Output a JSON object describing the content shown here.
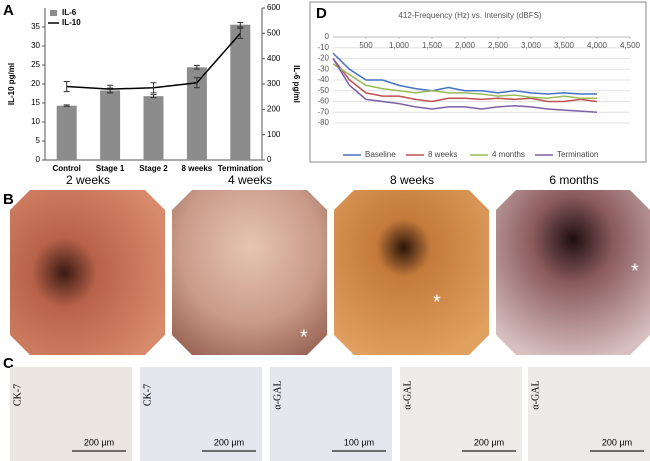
{
  "chart_data": [
    {
      "type": "bar",
      "y_label": "IL-10 pg/ml",
      "y2_label": "IL-6 pg/ml",
      "categories": [
        "Control",
        "Stage 1",
        "Stage 2",
        "8 weeks",
        "Termination"
      ],
      "series": [
        {
          "name": "IL-6",
          "type": "bar",
          "axis": "y",
          "color": "#8c8c8c",
          "values": [
            14.3,
            18.3,
            16.8,
            24.4,
            35.6
          ],
          "errors": [
            0.2,
            0.6,
            0.4,
            0.5,
            0.6
          ]
        },
        {
          "name": "IL-10",
          "type": "line",
          "axis": "y2",
          "color": "#000000",
          "values": [
            290,
            280,
            285,
            305,
            500
          ],
          "errors": [
            20,
            15,
            20,
            20,
            20
          ]
        }
      ],
      "ylim": [
        0,
        40
      ],
      "yticks": [
        0,
        5,
        10,
        15,
        20,
        25,
        30,
        35
      ],
      "y2lim": [
        0,
        600
      ],
      "y2ticks": [
        0,
        100,
        200,
        300,
        400,
        500,
        600
      ]
    },
    {
      "type": "line",
      "title": "412-Frequency (Hz) vs. Intensity (dBFS)",
      "x": [
        0,
        250,
        500,
        750,
        1000,
        1250,
        1500,
        1750,
        2000,
        2250,
        2500,
        2750,
        3000,
        3250,
        3500,
        3750,
        4000
      ],
      "series": [
        {
          "name": "Baseline",
          "color": "#4472c4",
          "values": [
            -15,
            -30,
            -40,
            -40,
            -45,
            -48,
            -50,
            -47,
            -50,
            -50,
            -52,
            -50,
            -52,
            -53,
            -52,
            -53,
            -53
          ]
        },
        {
          "name": "8 weeks",
          "color": "#c0504d",
          "values": [
            -20,
            -40,
            -52,
            -55,
            -55,
            -58,
            -60,
            -57,
            -57,
            -58,
            -57,
            -58,
            -57,
            -60,
            -60,
            -58,
            -60
          ]
        },
        {
          "name": "4 months",
          "color": "#9bbb59",
          "values": [
            -25,
            -35,
            -45,
            -48,
            -50,
            -52,
            -50,
            -52,
            -52,
            -53,
            -55,
            -54,
            -56,
            -57,
            -55,
            -57,
            -57
          ]
        },
        {
          "name": "Termination",
          "color": "#7f5fa8",
          "values": [
            -20,
            -45,
            -58,
            -60,
            -62,
            -65,
            -67,
            -65,
            -65,
            -67,
            -65,
            -64,
            -65,
            -67,
            -68,
            -69,
            -70
          ]
        }
      ],
      "xlim": [
        0,
        4500
      ],
      "xticks": [
        500,
        {
          "value": 1000,
          "label": "1,000"
        },
        {
          "value": 1500,
          "label": "1,500"
        },
        {
          "value": 2000,
          "label": "2,000"
        },
        {
          "value": 2500,
          "label": "2,500"
        },
        {
          "value": 3000,
          "label": "3,000"
        },
        {
          "value": 3500,
          "label": "3,500"
        },
        {
          "value": 4000,
          "label": "4,000"
        },
        {
          "value": 4500,
          "label": "4,500"
        }
      ],
      "ylim": [
        -80,
        0
      ],
      "yticks": [
        0,
        -10,
        -20,
        -30,
        -40,
        -50,
        -60,
        -70,
        -80
      ],
      "grid": true,
      "legend": "bottom"
    }
  ],
  "panel_labels": [
    "A",
    "D",
    "B",
    "C"
  ],
  "photos": {
    "titles": [
      "2 weeks",
      "4 weeks",
      "8 weeks",
      "6 months"
    ],
    "asterisks": [
      "*",
      "*",
      "*"
    ]
  },
  "micrographs": {
    "stains": [
      "CK-7",
      "CK-7",
      "α-GAL",
      "α-GAL",
      "α-GAL"
    ],
    "scale_bars": [
      "200 µm",
      "200 µm",
      "100 µm",
      "200 µm",
      "200 µm"
    ]
  }
}
